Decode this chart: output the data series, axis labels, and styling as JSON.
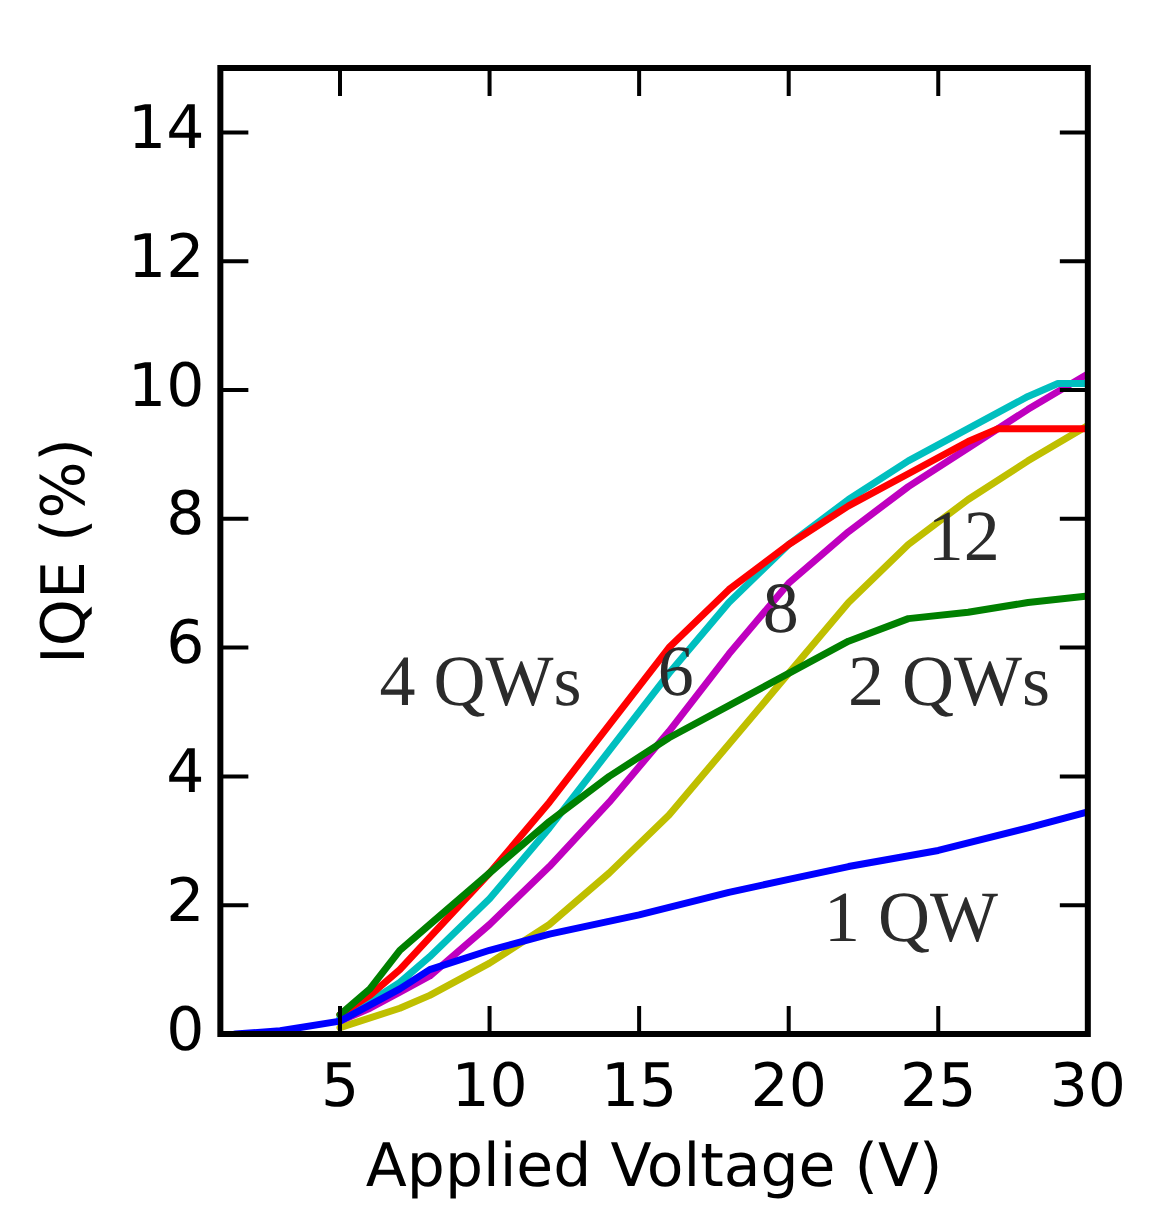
{
  "chart_data": {
    "type": "line",
    "xlabel": "Applied Voltage (V)",
    "ylabel": "IQE (%)",
    "xlim": [
      1,
      30
    ],
    "ylim": [
      0,
      15
    ],
    "xticks": [
      5,
      10,
      15,
      20,
      25,
      30
    ],
    "yticks": [
      0,
      2,
      4,
      6,
      8,
      10,
      12,
      14
    ],
    "grid": false,
    "legend": false,
    "marker": "none",
    "line_style": "solid",
    "series": [
      {
        "name": "1 QW",
        "color": "#0000ff",
        "x": [
          1.5,
          3,
          5,
          7,
          8,
          10,
          12,
          15,
          18,
          20,
          22,
          25,
          28,
          30
        ],
        "values": [
          0,
          0.05,
          0.2,
          0.7,
          1.0,
          1.3,
          1.55,
          1.85,
          2.2,
          2.4,
          2.6,
          2.85,
          3.2,
          3.45
        ]
      },
      {
        "name": "2 QWs",
        "color": "#008000",
        "x": [
          5,
          6,
          7,
          8,
          10,
          12,
          14,
          16,
          18,
          20,
          22,
          24,
          26,
          28,
          30
        ],
        "values": [
          0.3,
          0.7,
          1.3,
          1.7,
          2.5,
          3.3,
          4.0,
          4.6,
          5.1,
          5.6,
          6.1,
          6.45,
          6.55,
          6.7,
          6.8
        ]
      },
      {
        "name": "4 QWs",
        "color": "#ff0000",
        "x": [
          5,
          6,
          7,
          8,
          10,
          12,
          14,
          16,
          18,
          20,
          22,
          24,
          26,
          27,
          30
        ],
        "values": [
          0.3,
          0.6,
          1.0,
          1.5,
          2.5,
          3.6,
          4.8,
          6.0,
          6.9,
          7.6,
          8.2,
          8.7,
          9.2,
          9.4,
          9.4
        ]
      },
      {
        "name": "6",
        "color": "#00bfbf",
        "x": [
          5,
          6,
          7,
          8,
          10,
          12,
          14,
          16,
          18,
          20,
          22,
          24,
          26,
          28,
          29,
          30
        ],
        "values": [
          0.25,
          0.5,
          0.8,
          1.2,
          2.1,
          3.2,
          4.4,
          5.6,
          6.7,
          7.6,
          8.3,
          8.9,
          9.4,
          9.9,
          10.1,
          10.1
        ]
      },
      {
        "name": "8",
        "color": "#bf00bf",
        "x": [
          5,
          6,
          7,
          8,
          10,
          12,
          14,
          16,
          18,
          20,
          22,
          24,
          26,
          28,
          30
        ],
        "values": [
          0.2,
          0.4,
          0.65,
          0.9,
          1.7,
          2.6,
          3.6,
          4.7,
          5.9,
          7.0,
          7.8,
          8.5,
          9.1,
          9.7,
          10.25
        ]
      },
      {
        "name": "12",
        "color": "#bfbf00",
        "x": [
          5,
          7,
          8,
          10,
          12,
          14,
          16,
          18,
          20,
          22,
          24,
          26,
          28,
          30
        ],
        "values": [
          0.1,
          0.4,
          0.6,
          1.1,
          1.7,
          2.5,
          3.4,
          4.5,
          5.6,
          6.7,
          7.6,
          8.3,
          8.9,
          9.45
        ]
      }
    ]
  }
}
